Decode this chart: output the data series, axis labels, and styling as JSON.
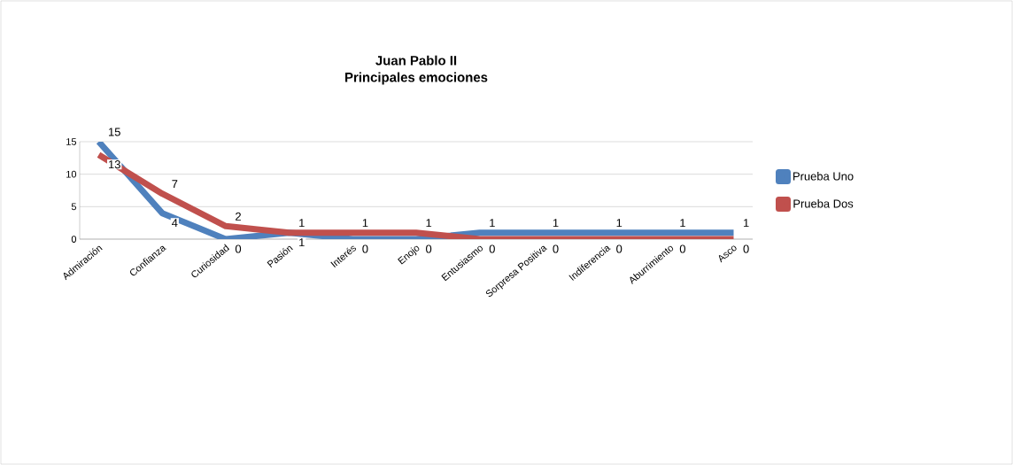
{
  "chart_data": {
    "type": "line",
    "title": "Juan Pablo II",
    "subtitle": "Principales emociones",
    "categories": [
      "Admiración",
      "Confianza",
      "Curiosidad",
      "Pasión",
      "Interés",
      "Enojo",
      "Entusiasmo",
      "Sorpresa Positiva",
      "Indiferencia",
      "Aburrimiento",
      "Asco"
    ],
    "series": [
      {
        "name": "Prueba Uno",
        "color": "#4f81bd",
        "values": [
          15,
          4,
          0,
          1,
          0,
          0,
          1,
          1,
          1,
          1,
          1
        ]
      },
      {
        "name": "Prueba Dos",
        "color": "#c0504d",
        "values": [
          13,
          7,
          2,
          1,
          1,
          1,
          0,
          0,
          0,
          0,
          0
        ]
      }
    ],
    "ylim": [
      0,
      15
    ],
    "yticks": [
      0,
      5,
      10,
      15
    ],
    "grid": "y",
    "legend": "right",
    "data_labels": true,
    "marker": "none"
  }
}
